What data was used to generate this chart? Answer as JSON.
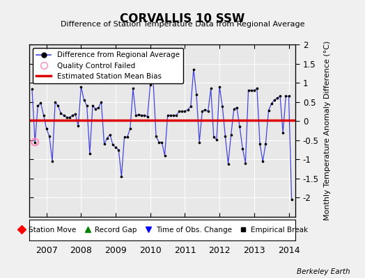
{
  "title": "CORVALLIS 10 SSW",
  "subtitle": "Difference of Station Temperature Data from Regional Average",
  "ylabel": "Monthly Temperature Anomaly Difference (°C)",
  "bias": 0.02,
  "xlim": [
    2006.5,
    2014.2
  ],
  "ylim": [
    -2.5,
    2.0
  ],
  "yticks": [
    -2.0,
    -1.5,
    -1.0,
    -0.5,
    0.0,
    0.5,
    1.0,
    1.5,
    2.0
  ],
  "ytick_labels": [
    "-2",
    "-1.5",
    "-1",
    "-0.5",
    "0",
    "0.5",
    "1",
    "1.5",
    "2"
  ],
  "xticks": [
    2007,
    2008,
    2009,
    2010,
    2011,
    2012,
    2013,
    2014
  ],
  "bg_color": "#e8e8e8",
  "fig_color": "#f0f0f0",
  "line_color": "#4444dd",
  "bias_color": "#dd0000",
  "qc_color": "#ff88bb",
  "time_series": [
    [
      2006.583,
      0.83
    ],
    [
      2006.667,
      -0.55
    ],
    [
      2006.75,
      0.4
    ],
    [
      2006.833,
      0.47
    ],
    [
      2006.917,
      0.15
    ],
    [
      2007.0,
      -0.2
    ],
    [
      2007.083,
      -0.4
    ],
    [
      2007.167,
      -1.05
    ],
    [
      2007.25,
      0.5
    ],
    [
      2007.333,
      0.4
    ],
    [
      2007.417,
      0.2
    ],
    [
      2007.5,
      0.15
    ],
    [
      2007.583,
      0.1
    ],
    [
      2007.667,
      0.1
    ],
    [
      2007.75,
      0.15
    ],
    [
      2007.833,
      0.18
    ],
    [
      2007.917,
      -0.12
    ],
    [
      2008.0,
      0.9
    ],
    [
      2008.083,
      0.55
    ],
    [
      2008.167,
      0.4
    ],
    [
      2008.25,
      -0.85
    ],
    [
      2008.333,
      0.4
    ],
    [
      2008.417,
      0.32
    ],
    [
      2008.5,
      0.35
    ],
    [
      2008.583,
      0.5
    ],
    [
      2008.667,
      -0.6
    ],
    [
      2008.75,
      -0.45
    ],
    [
      2008.833,
      -0.35
    ],
    [
      2008.917,
      -0.62
    ],
    [
      2009.0,
      -0.68
    ],
    [
      2009.083,
      -0.75
    ],
    [
      2009.167,
      -1.45
    ],
    [
      2009.25,
      -0.42
    ],
    [
      2009.333,
      -0.42
    ],
    [
      2009.417,
      -0.2
    ],
    [
      2009.5,
      0.85
    ],
    [
      2009.583,
      0.15
    ],
    [
      2009.667,
      0.17
    ],
    [
      2009.75,
      0.15
    ],
    [
      2009.833,
      0.15
    ],
    [
      2009.917,
      0.12
    ],
    [
      2010.0,
      0.95
    ],
    [
      2010.083,
      1.05
    ],
    [
      2010.167,
      -0.4
    ],
    [
      2010.25,
      -0.55
    ],
    [
      2010.333,
      -0.55
    ],
    [
      2010.417,
      -0.9
    ],
    [
      2010.5,
      0.15
    ],
    [
      2010.583,
      0.15
    ],
    [
      2010.667,
      0.15
    ],
    [
      2010.75,
      0.15
    ],
    [
      2010.833,
      0.25
    ],
    [
      2010.917,
      0.25
    ],
    [
      2011.0,
      0.25
    ],
    [
      2011.083,
      0.3
    ],
    [
      2011.167,
      0.38
    ],
    [
      2011.25,
      1.35
    ],
    [
      2011.333,
      0.7
    ],
    [
      2011.417,
      -0.55
    ],
    [
      2011.5,
      0.25
    ],
    [
      2011.583,
      0.3
    ],
    [
      2011.667,
      0.25
    ],
    [
      2011.75,
      0.85
    ],
    [
      2011.833,
      -0.42
    ],
    [
      2011.917,
      -0.48
    ],
    [
      2012.0,
      0.9
    ],
    [
      2012.083,
      0.38
    ],
    [
      2012.167,
      -0.4
    ],
    [
      2012.25,
      -1.12
    ],
    [
      2012.333,
      -0.35
    ],
    [
      2012.417,
      0.32
    ],
    [
      2012.5,
      0.35
    ],
    [
      2012.583,
      -0.15
    ],
    [
      2012.667,
      -0.72
    ],
    [
      2012.75,
      -1.1
    ],
    [
      2012.833,
      0.8
    ],
    [
      2012.917,
      0.8
    ],
    [
      2013.0,
      0.8
    ],
    [
      2013.083,
      0.85
    ],
    [
      2013.167,
      -0.6
    ],
    [
      2013.25,
      -1.05
    ],
    [
      2013.333,
      -0.6
    ],
    [
      2013.417,
      0.28
    ],
    [
      2013.5,
      0.45
    ],
    [
      2013.583,
      0.55
    ],
    [
      2013.667,
      0.6
    ],
    [
      2013.75,
      0.65
    ],
    [
      2013.833,
      -0.3
    ],
    [
      2013.917,
      0.65
    ],
    [
      2014.0,
      0.65
    ],
    [
      2014.083,
      -2.05
    ]
  ],
  "qc_failed": [
    [
      2006.667,
      -0.55
    ]
  ]
}
